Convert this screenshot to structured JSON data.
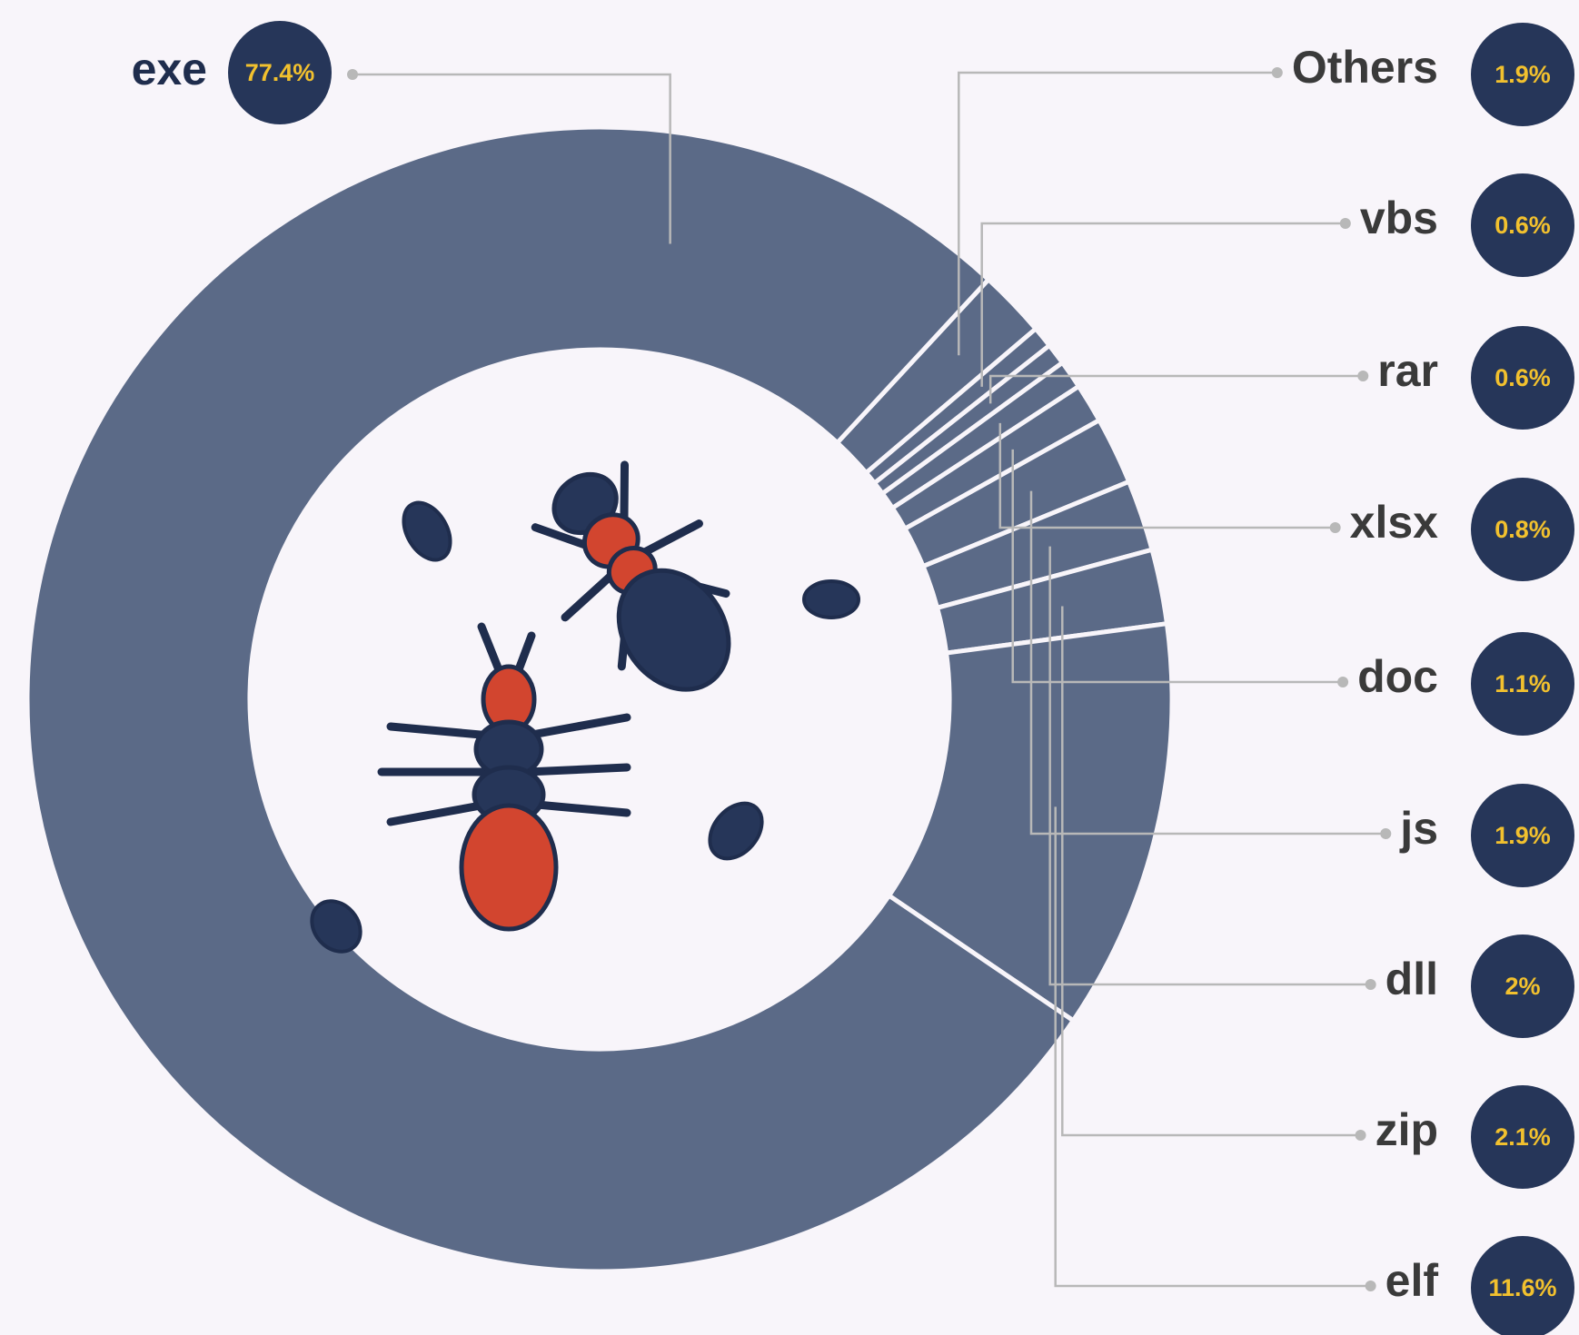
{
  "chart_data": {
    "type": "pie",
    "categories": [
      "Others",
      "vbs",
      "rar",
      "xlsx",
      "doc",
      "js",
      "dll",
      "zip",
      "elf",
      "exe"
    ],
    "values": [
      1.9,
      0.6,
      0.6,
      0.8,
      1.1,
      1.9,
      2,
      2.1,
      11.6,
      77.4
    ],
    "value_labels": [
      "1.9%",
      "0.6%",
      "0.6%",
      "0.8%",
      "1.1%",
      "1.9%",
      "2%",
      "2.1%",
      "11.6%",
      "77.4%"
    ],
    "color": "#5b6a87"
  }
}
